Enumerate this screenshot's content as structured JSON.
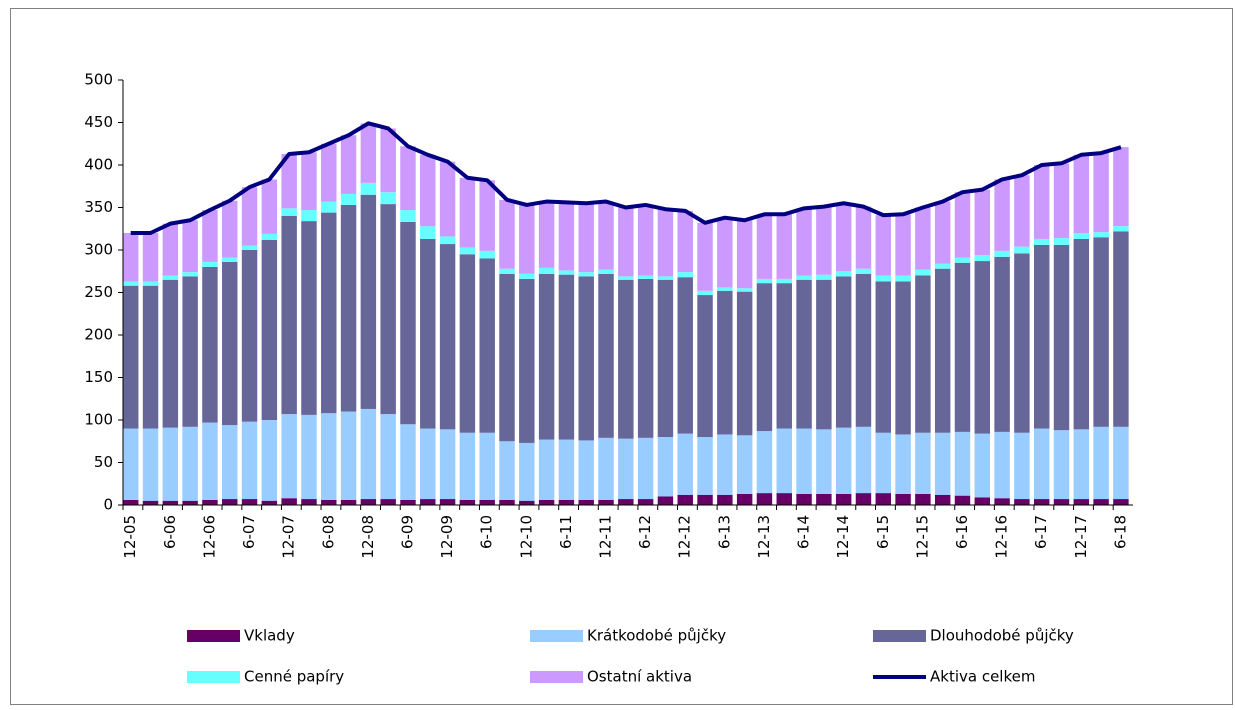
{
  "chart_data": {
    "type": "bar",
    "stacked": true,
    "grid": false,
    "legend": "bottom",
    "categories": [
      "12-05",
      null,
      "6-06",
      null,
      "12-06",
      null,
      "6-07",
      null,
      "12-07",
      null,
      "6-08",
      null,
      "12-08",
      null,
      "6-09",
      null,
      "12-09",
      null,
      "6-10",
      null,
      "12-10",
      null,
      "6-11",
      null,
      "12-11",
      null,
      "6-12",
      null,
      "12-12",
      null,
      "6-13",
      null,
      "12-13",
      null,
      "6-14",
      null,
      "12-14",
      null,
      "6-15",
      null,
      "12-15",
      null,
      "6-16",
      null,
      "12-16",
      null,
      "6-17",
      null,
      "12-17",
      null,
      "6-18"
    ],
    "ylim": [
      0,
      500
    ],
    "yticks": [
      0,
      50,
      100,
      150,
      200,
      250,
      300,
      350,
      400,
      450,
      500
    ],
    "series": [
      {
        "name": "Vklady",
        "color": "#660066",
        "values": [
          6,
          5,
          5,
          5,
          6,
          7,
          7,
          5,
          8,
          7,
          6,
          6,
          7,
          7,
          6,
          7,
          7,
          6,
          6,
          6,
          5,
          6,
          6,
          6,
          6,
          7,
          7,
          10,
          12,
          12,
          12,
          13,
          14,
          14,
          13,
          13,
          13,
          14,
          14,
          13,
          13,
          12,
          11,
          9,
          8,
          7,
          7,
          7,
          7,
          7,
          7
        ]
      },
      {
        "name": "Krátkodobé půjčky",
        "color": "#99ccff",
        "values": [
          84,
          85,
          86,
          87,
          91,
          87,
          91,
          95,
          99,
          99,
          102,
          104,
          106,
          100,
          89,
          83,
          82,
          79,
          79,
          69,
          68,
          71,
          71,
          70,
          73,
          71,
          72,
          70,
          72,
          68,
          71,
          69,
          73,
          76,
          77,
          76,
          78,
          78,
          71,
          70,
          72,
          73,
          75,
          75,
          78,
          78,
          83,
          81,
          82,
          85,
          85
        ]
      },
      {
        "name": "Dlouhodobé půjčky",
        "color": "#666699",
        "values": [
          168,
          168,
          174,
          177,
          183,
          192,
          202,
          212,
          233,
          228,
          236,
          243,
          252,
          247,
          238,
          223,
          218,
          210,
          205,
          197,
          193,
          195,
          194,
          193,
          193,
          187,
          187,
          185,
          184,
          167,
          169,
          169,
          174,
          171,
          175,
          176,
          178,
          180,
          178,
          180,
          185,
          193,
          199,
          203,
          206,
          211,
          216,
          218,
          224,
          223,
          230
        ]
      },
      {
        "name": "Cenné papíry",
        "color": "#66ffff",
        "values": [
          5,
          5,
          5,
          5,
          6,
          5,
          5,
          7,
          9,
          13,
          13,
          13,
          14,
          14,
          14,
          15,
          9,
          8,
          9,
          6,
          6,
          7,
          5,
          5,
          5,
          4,
          4,
          4,
          6,
          5,
          4,
          4,
          5,
          5,
          5,
          6,
          6,
          6,
          7,
          7,
          7,
          6,
          6,
          7,
          7,
          8,
          7,
          8,
          7,
          6,
          6
        ]
      },
      {
        "name": "Ostatní aktiva",
        "color": "#cc99ff",
        "values": [
          57,
          57,
          61,
          61,
          61,
          67,
          69,
          64,
          64,
          68,
          68,
          69,
          70,
          75,
          75,
          84,
          88,
          82,
          83,
          81,
          81,
          78,
          80,
          81,
          80,
          81,
          83,
          79,
          72,
          80,
          82,
          80,
          76,
          76,
          79,
          80,
          80,
          73,
          71,
          72,
          73,
          73,
          77,
          77,
          84,
          84,
          87,
          88,
          92,
          93,
          93
        ]
      },
      {
        "name": "Aktiva celkem",
        "color": "#000080",
        "type": "line",
        "values": [
          320,
          320,
          331,
          335,
          347,
          358,
          374,
          383,
          413,
          415,
          425,
          435,
          449,
          443,
          422,
          412,
          404,
          385,
          382,
          359,
          353,
          357,
          356,
          355,
          357,
          350,
          353,
          348,
          346,
          332,
          338,
          335,
          342,
          342,
          349,
          351,
          355,
          351,
          341,
          342,
          350,
          357,
          368,
          371,
          383,
          388,
          400,
          402,
          412,
          414,
          421
        ]
      }
    ]
  }
}
